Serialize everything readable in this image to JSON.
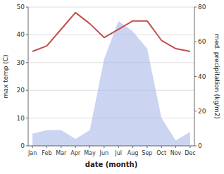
{
  "chart_data": {
    "type": "line",
    "categories": [
      "Jan",
      "Feb",
      "Mar",
      "Apr",
      "May",
      "Jun",
      "Jul",
      "Aug",
      "Sep",
      "Oct",
      "Nov",
      "Dec"
    ],
    "series": [
      {
        "type": "area",
        "axis": "y2",
        "color": "#a8b8e8",
        "values": [
          7,
          9,
          9,
          4,
          9,
          50,
          72,
          66,
          56,
          16,
          3,
          8
        ]
      },
      {
        "type": "line",
        "color": "#c0504d",
        "values": [
          34,
          36,
          42,
          48,
          44,
          39,
          42,
          45,
          45,
          38,
          35,
          34
        ]
      }
    ],
    "x_label": "date (month)",
    "y_label": "max temp (C)",
    "y2_label": "med. precipitation (kg/m2)",
    "ylim": [
      0,
      50
    ],
    "yticks": [
      0,
      10,
      20,
      30,
      40,
      50
    ],
    "y2lim": [
      0,
      80
    ],
    "y2ticks": [
      0,
      20,
      40,
      60,
      80
    ],
    "grid": true
  }
}
